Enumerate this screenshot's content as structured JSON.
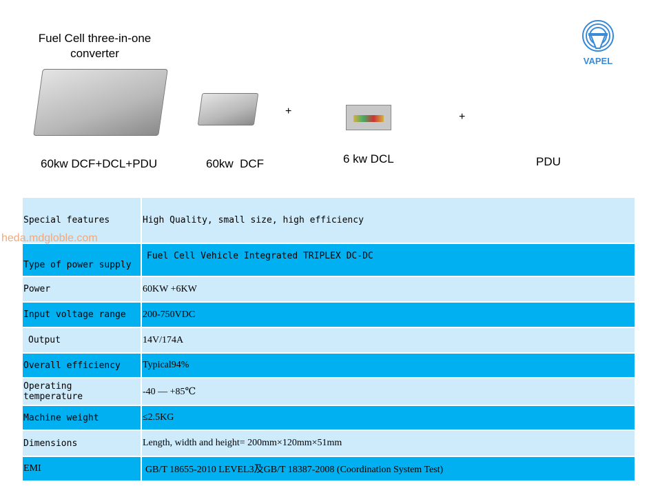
{
  "header": {
    "title": "Fuel Cell three-in-one converter",
    "captions": [
      "60kw DCF+DCL+PDU",
      "60kw  DCF",
      "6 kw DCL",
      "PDU"
    ],
    "plus": "+",
    "logo_text": "VAPEL"
  },
  "watermark": "heda.mdgloble.com",
  "colors": {
    "row_light": "#cdebfb",
    "row_dark": "#00b0f0",
    "logo": "#3a8ad6",
    "watermark": "#f3a878"
  },
  "specs": [
    {
      "label": "Special features",
      "value": "High Quality, small size, high efficiency"
    },
    {
      "label": "Type of power supply",
      "value": "Fuel Cell Vehicle Integrated TRIPLEX DC-DC"
    },
    {
      "label": "Power",
      "value": "60KW +6KW"
    },
    {
      "label": "Input voltage range",
      "value": "200-750VDC"
    },
    {
      "label": "Output",
      "value": "14V/174A"
    },
    {
      "label": "Overall efficiency",
      "value": "Typical94%"
    },
    {
      "label": "Operating temperature",
      "value": "-40 — +85℃"
    },
    {
      "label": "Machine weight",
      "value": "≤2.5KG"
    },
    {
      "label": "Dimensions",
      "value": "Length, width and height= 200mm×120mm×51mm"
    },
    {
      "label": "EMI",
      "value": "GB/T 18655-2010 LEVEL3及GB/T 18387-2008 (Coordination System Test)"
    }
  ]
}
